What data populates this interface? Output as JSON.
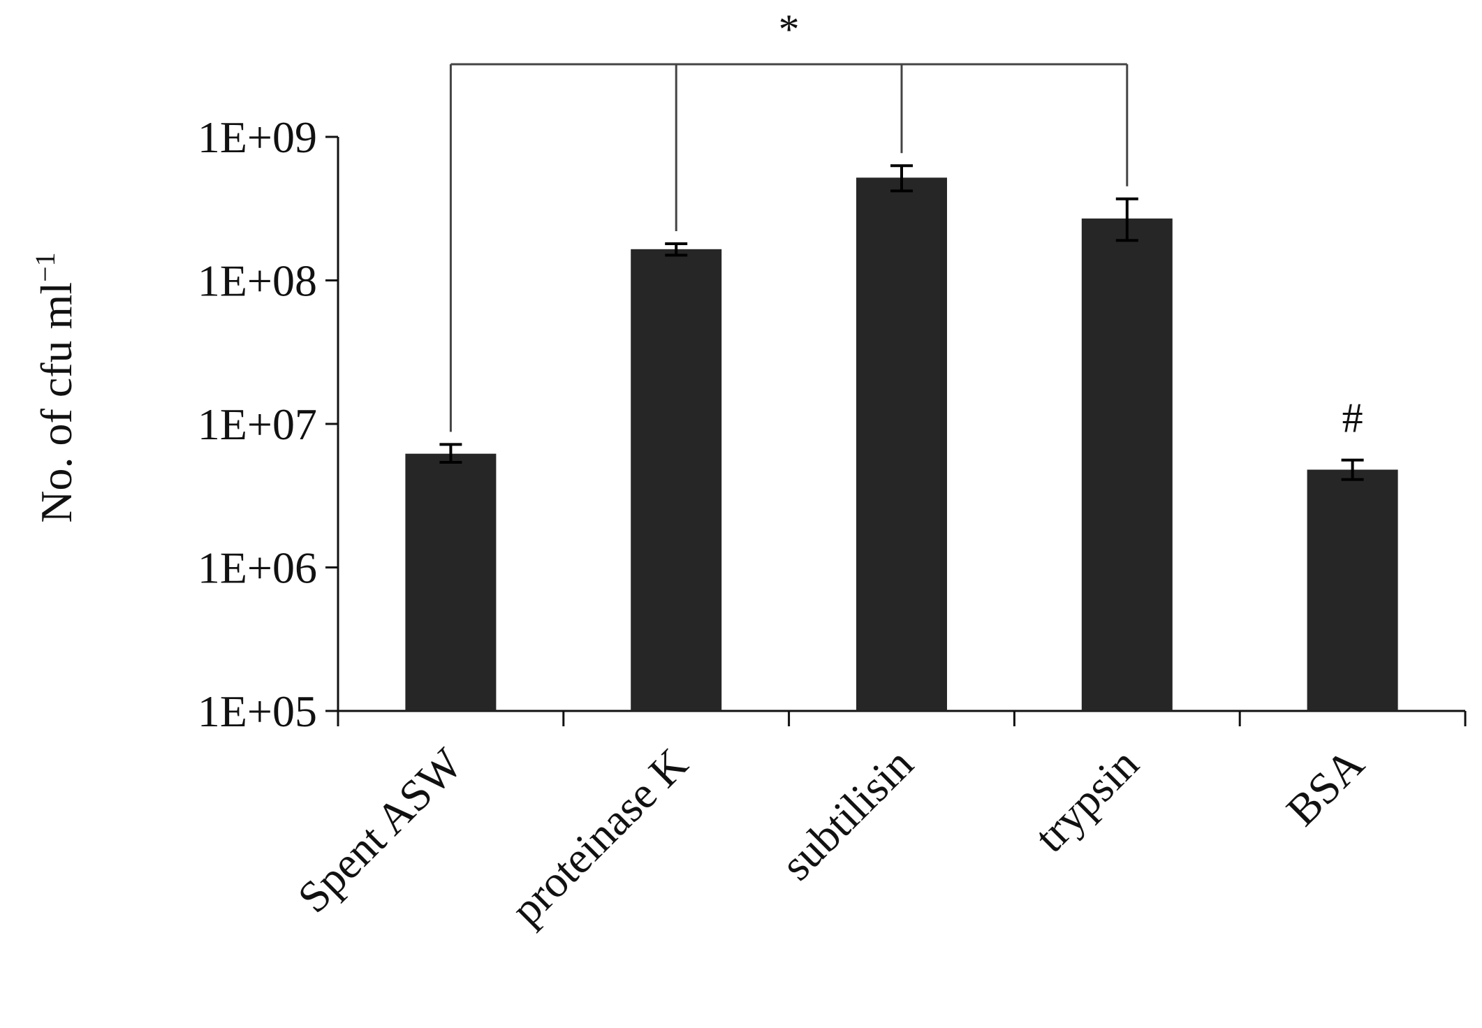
{
  "chart_data": {
    "type": "bar",
    "title": "",
    "xlabel": "",
    "ylabel": "No. of cfu ml",
    "ylabel_superscript": "−1",
    "y_scale": "log",
    "ylim": [
      100000,
      1000000000
    ],
    "y_ticks": [
      100000,
      1000000,
      10000000,
      100000000,
      1000000000
    ],
    "y_tick_labels": [
      "1E+05",
      "1E+06",
      "1E+07",
      "1E+08",
      "1E+09"
    ],
    "categories": [
      "Spent ASW",
      "proteinase K",
      "subtilisin",
      "trypsin",
      "BSA"
    ],
    "values": [
      6200000,
      165000000,
      520000000,
      270000000,
      4800000
    ],
    "error_upper": [
      7200000,
      180000000,
      630000000,
      370000000,
      5600000
    ],
    "error_lower": [
      5400000,
      150000000,
      420000000,
      190000000,
      4100000
    ],
    "bar_color": "#262626",
    "grid": false,
    "legend": "none",
    "annotations": {
      "bracket_label": "*",
      "bracket_categories": [
        "Spent ASW",
        "proteinase K",
        "subtilisin",
        "trypsin"
      ],
      "bsa_label": "#"
    }
  }
}
